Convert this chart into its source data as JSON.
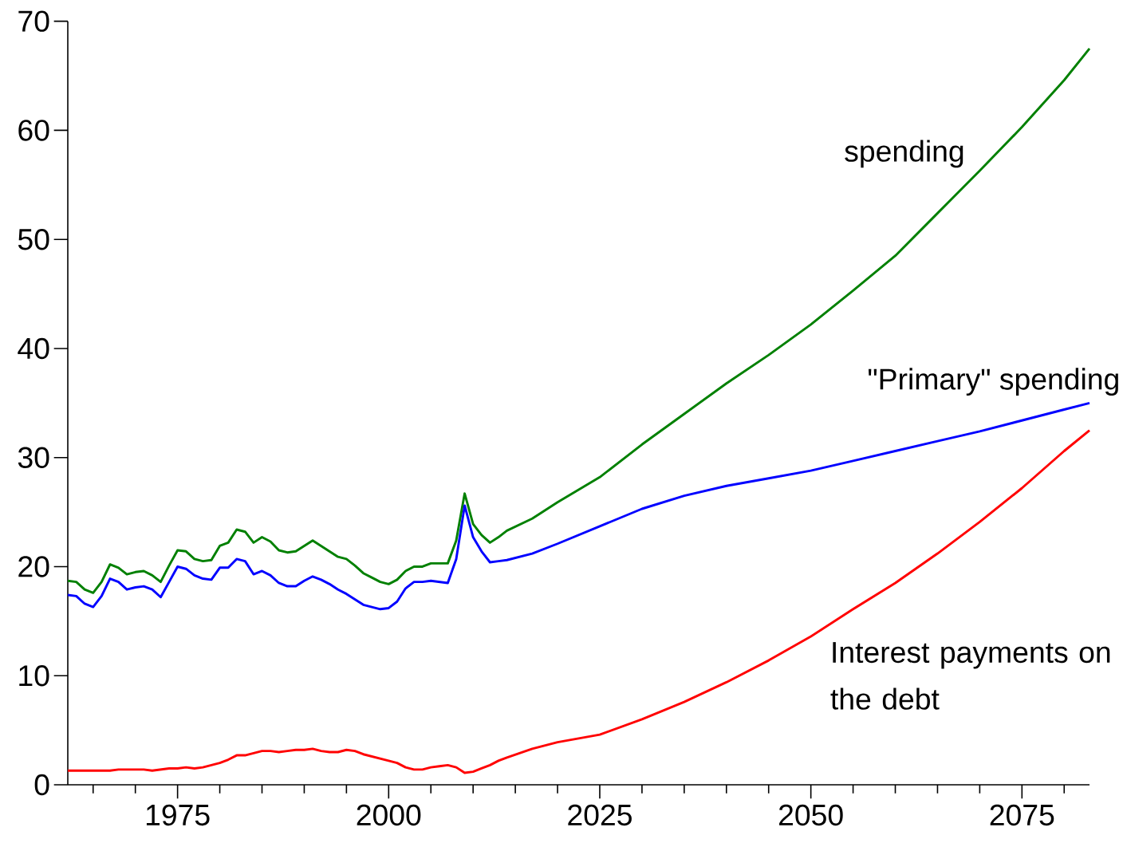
{
  "chart_data": {
    "type": "line",
    "x": [
      1962,
      1963,
      1964,
      1965,
      1966,
      1967,
      1968,
      1969,
      1970,
      1971,
      1972,
      1973,
      1974,
      1975,
      1976,
      1977,
      1978,
      1979,
      1980,
      1981,
      1982,
      1983,
      1984,
      1985,
      1986,
      1987,
      1988,
      1989,
      1990,
      1991,
      1992,
      1993,
      1994,
      1995,
      1996,
      1997,
      1998,
      1999,
      2000,
      2001,
      2002,
      2003,
      2004,
      2005,
      2006,
      2007,
      2008,
      2009,
      2010,
      2011,
      2012,
      2013,
      2014,
      2017,
      2020,
      2025,
      2030,
      2035,
      2040,
      2045,
      2050,
      2055,
      2060,
      2065,
      2070,
      2075,
      2080,
      2083
    ],
    "xlim": [
      1962,
      2083
    ],
    "xticks": [
      {
        "value": 1965,
        "label": null
      },
      {
        "value": 1970,
        "label": null
      },
      1975,
      {
        "value": 1980,
        "label": null
      },
      {
        "value": 1985,
        "label": null
      },
      {
        "value": 1990,
        "label": null
      },
      {
        "value": 1995,
        "label": null
      },
      2000,
      {
        "value": 2005,
        "label": null
      },
      {
        "value": 2010,
        "label": null
      },
      {
        "value": 2015,
        "label": null
      },
      {
        "value": 2020,
        "label": null
      },
      2025,
      {
        "value": 2030,
        "label": null
      },
      {
        "value": 2035,
        "label": null
      },
      {
        "value": 2040,
        "label": null
      },
      {
        "value": 2045,
        "label": null
      },
      2050,
      {
        "value": 2055,
        "label": null
      },
      {
        "value": 2060,
        "label": null
      },
      {
        "value": 2065,
        "label": null
      },
      {
        "value": 2070,
        "label": null
      },
      2075,
      {
        "value": 2080,
        "label": null
      }
    ],
    "ylim": [
      0,
      70
    ],
    "yticks": [
      0,
      10,
      20,
      30,
      40,
      50,
      60,
      70
    ],
    "series": [
      {
        "name": "spending",
        "color": "#008000",
        "values": [
          18.7,
          18.6,
          17.9,
          17.6,
          18.6,
          20.2,
          19.9,
          19.3,
          19.5,
          19.6,
          19.2,
          18.6,
          20.1,
          21.5,
          21.4,
          20.7,
          20.5,
          20.6,
          21.9,
          22.2,
          23.4,
          23.2,
          22.2,
          22.7,
          22.3,
          21.5,
          21.3,
          21.4,
          21.9,
          22.4,
          21.9,
          21.4,
          20.9,
          20.7,
          20.1,
          19.4,
          19.0,
          18.6,
          18.4,
          18.8,
          19.6,
          20.0,
          20.0,
          20.3,
          20.3,
          20.3,
          22.4,
          26.7,
          23.9,
          22.9,
          22.2,
          22.7,
          23.3,
          24.4,
          25.9,
          28.2,
          31.2,
          34.0,
          36.8,
          39.4,
          42.2,
          45.3,
          48.5,
          52.4,
          56.3,
          60.3,
          64.6,
          67.5
        ]
      },
      {
        "name": "\"Primary\" spending",
        "color": "#0000ff",
        "values": [
          17.4,
          17.3,
          16.6,
          16.3,
          17.3,
          18.9,
          18.6,
          17.9,
          18.1,
          18.2,
          17.9,
          17.2,
          18.6,
          20.0,
          19.8,
          19.2,
          18.9,
          18.8,
          19.9,
          19.9,
          20.7,
          20.5,
          19.3,
          19.6,
          19.2,
          18.5,
          18.2,
          18.2,
          18.7,
          19.1,
          18.8,
          18.4,
          17.9,
          17.5,
          17.0,
          16.5,
          16.3,
          16.1,
          16.2,
          16.8,
          18.0,
          18.6,
          18.6,
          18.7,
          18.6,
          18.5,
          20.7,
          25.6,
          22.7,
          21.4,
          20.4,
          20.5,
          20.6,
          21.2,
          22.1,
          23.7,
          25.3,
          26.5,
          27.4,
          28.1,
          28.8,
          29.7,
          30.6,
          31.5,
          32.4,
          33.4,
          34.4,
          35.0
        ]
      },
      {
        "name": "Interest payments on the debt",
        "color": "#ff0000",
        "values": [
          1.3,
          1.3,
          1.3,
          1.3,
          1.3,
          1.3,
          1.4,
          1.4,
          1.4,
          1.4,
          1.3,
          1.4,
          1.5,
          1.5,
          1.6,
          1.5,
          1.6,
          1.8,
          2.0,
          2.3,
          2.7,
          2.7,
          2.9,
          3.1,
          3.1,
          3.0,
          3.1,
          3.2,
          3.2,
          3.3,
          3.1,
          3.0,
          3.0,
          3.2,
          3.1,
          2.8,
          2.6,
          2.4,
          2.2,
          2.0,
          1.6,
          1.4,
          1.4,
          1.6,
          1.7,
          1.8,
          1.6,
          1.1,
          1.2,
          1.5,
          1.8,
          2.2,
          2.5,
          3.3,
          3.9,
          4.6,
          6.0,
          7.6,
          9.4,
          11.4,
          13.6,
          16.1,
          18.5,
          21.2,
          24.1,
          27.2,
          30.6,
          32.5
        ]
      }
    ]
  }
}
